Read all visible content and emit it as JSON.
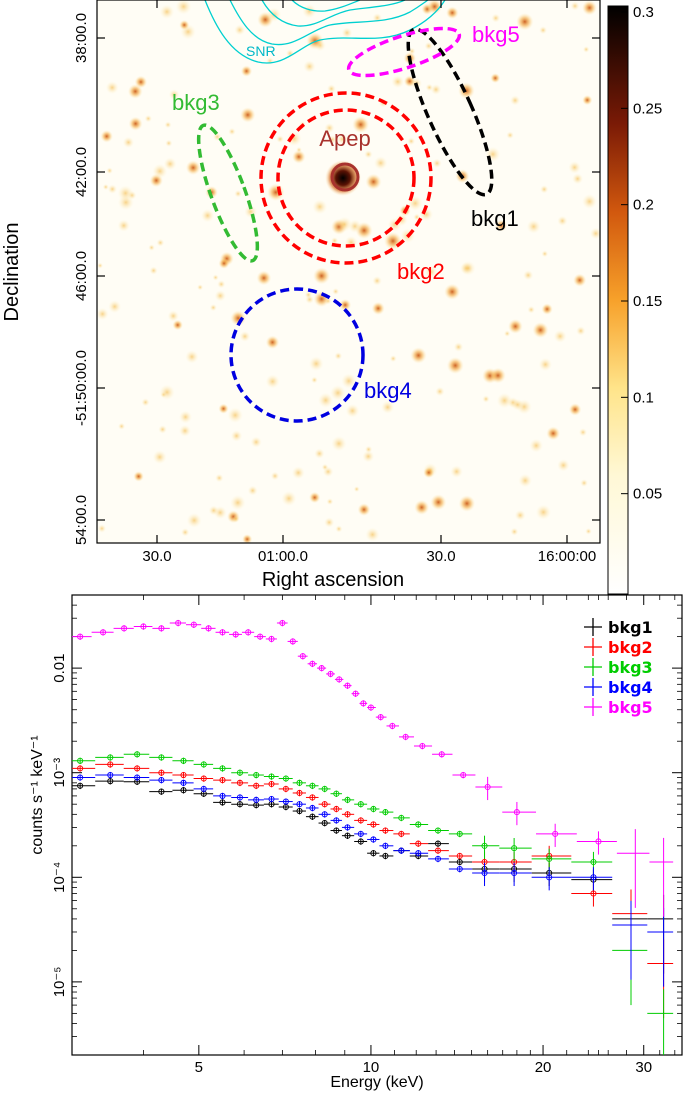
{
  "chart_data": [
    {
      "type": "heatmap",
      "xlabel": "Right ascension",
      "ylabel": "Declination",
      "x_ticks": [
        "30.0",
        "01:00.0",
        "30.0",
        "16:00:00"
      ],
      "y_ticks": [
        "38:00.0",
        "42:00.0",
        "46:00.0",
        "-51:50:00.0",
        "54:00.0"
      ],
      "colorbar": {
        "min": 0,
        "max": 0.3,
        "ticks": [
          0.05,
          0.1,
          0.15,
          0.2,
          0.25,
          0.3
        ]
      },
      "grid": false,
      "annotations": [
        {
          "id": "apep",
          "label": "Apep",
          "color": "#a8322d"
        },
        {
          "id": "snr",
          "label": "SNR",
          "color": "#00cfd0"
        },
        {
          "id": "bkg1",
          "label": "bkg1",
          "color": "#000000"
        },
        {
          "id": "bkg2",
          "label": "bkg2",
          "color": "#ff0000"
        },
        {
          "id": "bkg3",
          "label": "bkg3",
          "color": "#33bb33"
        },
        {
          "id": "bkg4",
          "label": "bkg4",
          "color": "#0000e0"
        },
        {
          "id": "bkg5",
          "label": "bkg5",
          "color": "#ff00ff"
        }
      ]
    },
    {
      "type": "scatter",
      "xlabel": "Energy (keV)",
      "ylabel": "counts s⁻¹ keV⁻¹",
      "x_scale": "log",
      "y_scale": "log",
      "xlim": [
        3,
        35
      ],
      "ylim": [
        2e-06,
        0.05
      ],
      "x_ticks": [
        {
          "v": 5,
          "label": "5"
        },
        {
          "v": 10,
          "label": "10"
        },
        {
          "v": 20,
          "label": "20"
        },
        {
          "v": 30,
          "label": "30"
        }
      ],
      "y_ticks": [
        {
          "v": 0.01,
          "label": "0.01"
        },
        {
          "v": 0.001,
          "label": "10⁻³"
        },
        {
          "v": 0.0001,
          "label": "10⁻⁴"
        },
        {
          "v": 1e-05,
          "label": "10⁻⁵"
        }
      ],
      "legend_position": "top-right",
      "series": [
        {
          "name": "bkg1",
          "color": "#000000",
          "points": [
            [
              3.1,
              0.00075
            ],
            [
              3.5,
              0.00083
            ],
            [
              3.9,
              0.00082
            ],
            [
              4.3,
              0.00066
            ],
            [
              4.7,
              0.00068
            ],
            [
              5.1,
              0.00063
            ],
            [
              5.5,
              0.00052
            ],
            [
              5.9,
              0.0005
            ],
            [
              6.3,
              0.00049
            ],
            [
              6.7,
              0.0005
            ],
            [
              7.1,
              0.00047
            ],
            [
              7.5,
              0.00043
            ],
            [
              7.9,
              0.00038
            ],
            [
              8.3,
              0.00033
            ],
            [
              8.7,
              0.00028
            ],
            [
              9.1,
              0.00025
            ],
            [
              9.6,
              0.00022
            ],
            [
              10.1,
              0.00017
            ],
            [
              10.6,
              0.00016
            ],
            [
              11.3,
              0.00018
            ],
            [
              12.1,
              0.00016
            ],
            [
              13.1,
              0.00021
            ],
            [
              14.3,
              0.00014
            ],
            [
              15.8,
              0.00012
            ],
            [
              17.8,
              0.00012
            ],
            [
              20.5,
              0.00011
            ],
            [
              24.5,
              9.5e-05
            ],
            [
              28.5,
              4e-05
            ],
            [
              32.5,
              4e-05
            ]
          ]
        },
        {
          "name": "bkg2",
          "color": "#ff0000",
          "points": [
            [
              3.1,
              0.0011
            ],
            [
              3.5,
              0.0012
            ],
            [
              3.9,
              0.0011
            ],
            [
              4.3,
              0.001
            ],
            [
              4.7,
              0.00095
            ],
            [
              5.1,
              0.00088
            ],
            [
              5.5,
              0.00085
            ],
            [
              5.9,
              0.0008
            ],
            [
              6.3,
              0.00075
            ],
            [
              6.7,
              0.00078
            ],
            [
              7.1,
              0.0007
            ],
            [
              7.5,
              0.00064
            ],
            [
              7.9,
              0.00058
            ],
            [
              8.3,
              0.0005
            ],
            [
              8.7,
              0.00045
            ],
            [
              9.1,
              0.0004
            ],
            [
              9.6,
              0.00035
            ],
            [
              10.1,
              0.00032
            ],
            [
              10.6,
              0.00028
            ],
            [
              11.3,
              0.00026
            ],
            [
              12.1,
              0.00021
            ],
            [
              13.1,
              0.00018
            ],
            [
              14.3,
              0.00016
            ],
            [
              15.8,
              0.00014
            ],
            [
              17.8,
              0.00014
            ],
            [
              20.5,
              0.00016
            ],
            [
              24.5,
              7e-05
            ],
            [
              28.5,
              4.5e-05
            ],
            [
              32.5,
              1.5e-05
            ]
          ]
        },
        {
          "name": "bkg3",
          "color": "#00cc00",
          "points": [
            [
              3.1,
              0.0013
            ],
            [
              3.5,
              0.0014
            ],
            [
              3.9,
              0.0015
            ],
            [
              4.3,
              0.0014
            ],
            [
              4.7,
              0.0013
            ],
            [
              5.1,
              0.0012
            ],
            [
              5.5,
              0.0011
            ],
            [
              5.9,
              0.001
            ],
            [
              6.3,
              0.00095
            ],
            [
              6.7,
              0.00092
            ],
            [
              7.1,
              0.00088
            ],
            [
              7.5,
              0.0008
            ],
            [
              7.9,
              0.00075
            ],
            [
              8.3,
              0.0007
            ],
            [
              8.7,
              0.00063
            ],
            [
              9.1,
              0.00055
            ],
            [
              9.6,
              0.0005
            ],
            [
              10.1,
              0.00045
            ],
            [
              10.6,
              0.00042
            ],
            [
              11.3,
              0.00037
            ],
            [
              12.1,
              0.00032
            ],
            [
              13.1,
              0.00028
            ],
            [
              14.3,
              0.00026
            ],
            [
              15.8,
              0.0002
            ],
            [
              17.8,
              0.00019
            ],
            [
              20.5,
              0.00015
            ],
            [
              24.5,
              0.00014
            ],
            [
              28.5,
              2e-05
            ],
            [
              32.5,
              5e-06
            ]
          ]
        },
        {
          "name": "bkg4",
          "color": "#0000ff",
          "points": [
            [
              3.1,
              0.0009
            ],
            [
              3.5,
              0.00095
            ],
            [
              3.9,
              0.0009
            ],
            [
              4.3,
              0.00085
            ],
            [
              4.7,
              0.0008
            ],
            [
              5.1,
              0.0007
            ],
            [
              5.5,
              0.0006
            ],
            [
              5.9,
              0.00058
            ],
            [
              6.3,
              0.00055
            ],
            [
              6.7,
              0.00056
            ],
            [
              7.1,
              0.00053
            ],
            [
              7.5,
              0.0005
            ],
            [
              7.9,
              0.00046
            ],
            [
              8.3,
              0.0004
            ],
            [
              8.7,
              0.00035
            ],
            [
              9.1,
              0.0003
            ],
            [
              9.6,
              0.00026
            ],
            [
              10.1,
              0.00023
            ],
            [
              10.6,
              0.0002
            ],
            [
              11.3,
              0.00018
            ],
            [
              12.1,
              0.00017
            ],
            [
              13.1,
              0.00015
            ],
            [
              14.3,
              0.00012
            ],
            [
              15.8,
              0.00011
            ],
            [
              17.8,
              0.00011
            ],
            [
              20.5,
              0.0001
            ],
            [
              24.5,
              0.0001
            ],
            [
              28.5,
              3.5e-05
            ],
            [
              32.5,
              3e-05
            ]
          ]
        },
        {
          "name": "bkg5",
          "color": "#ff00ff",
          "points": [
            [
              3.1,
              0.02
            ],
            [
              3.4,
              0.022
            ],
            [
              3.7,
              0.024
            ],
            [
              4.0,
              0.025
            ],
            [
              4.3,
              0.024
            ],
            [
              4.6,
              0.027
            ],
            [
              4.9,
              0.026
            ],
            [
              5.2,
              0.024
            ],
            [
              5.5,
              0.022
            ],
            [
              5.8,
              0.021
            ],
            [
              6.1,
              0.022
            ],
            [
              6.4,
              0.02
            ],
            [
              6.7,
              0.019
            ],
            [
              7.0,
              0.027
            ],
            [
              7.3,
              0.018
            ],
            [
              7.6,
              0.013
            ],
            [
              7.9,
              0.011
            ],
            [
              8.2,
              0.01
            ],
            [
              8.5,
              0.0088
            ],
            [
              8.8,
              0.0078
            ],
            [
              9.1,
              0.0068
            ],
            [
              9.4,
              0.0057
            ],
            [
              9.7,
              0.0046
            ],
            [
              10.0,
              0.0042
            ],
            [
              10.4,
              0.0034
            ],
            [
              10.9,
              0.0028
            ],
            [
              11.5,
              0.0022
            ],
            [
              12.3,
              0.0018
            ],
            [
              13.3,
              0.0015
            ],
            [
              14.5,
              0.00095
            ],
            [
              16.0,
              0.00073
            ],
            [
              18.0,
              0.00042
            ],
            [
              21.0,
              0.00026
            ],
            [
              25.0,
              0.00022
            ],
            [
              29.0,
              0.00017
            ],
            [
              32.5,
              0.00014
            ]
          ]
        }
      ]
    }
  ]
}
